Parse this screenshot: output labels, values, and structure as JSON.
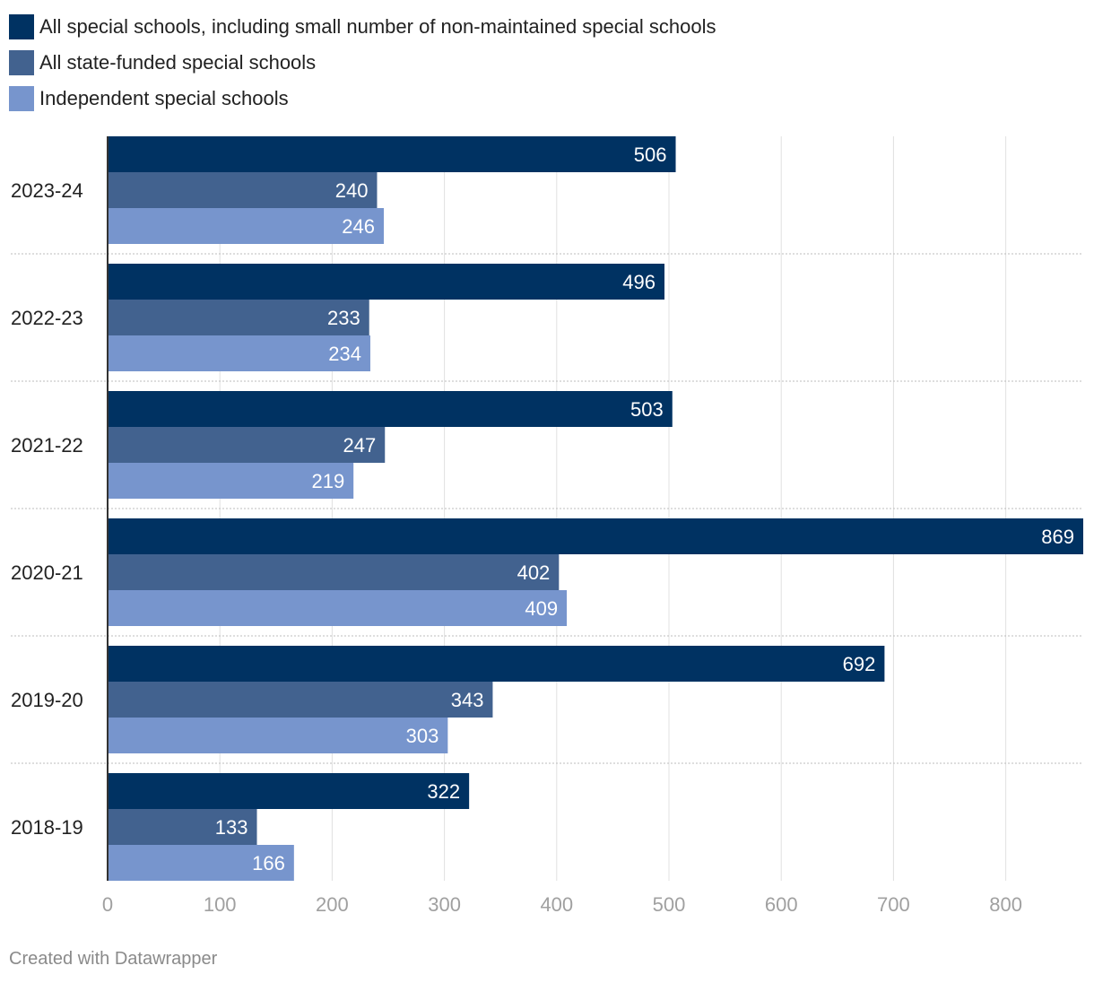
{
  "chart_data": {
    "type": "bar",
    "orientation": "horizontal",
    "categories": [
      "2023-24",
      "2022-23",
      "2021-22",
      "2020-21",
      "2019-20",
      "2018-19"
    ],
    "series": [
      {
        "name": "All special schools, including small number of non-maintained special schools",
        "color": "#003262",
        "values": [
          506,
          496,
          503,
          869,
          692,
          322
        ]
      },
      {
        "name": "All state-funded special schools",
        "color": "#42628f",
        "values": [
          240,
          233,
          247,
          402,
          343,
          133
        ]
      },
      {
        "name": "Independent special schools",
        "color": "#7795cd",
        "values": [
          246,
          234,
          219,
          409,
          303,
          166
        ]
      }
    ],
    "x_ticks": [
      0,
      100,
      200,
      300,
      400,
      500,
      600,
      700,
      800
    ],
    "xlim": [
      0,
      869
    ],
    "legend_position": "top-left",
    "grid": true
  },
  "footer": {
    "credit": "Created with Datawrapper"
  }
}
